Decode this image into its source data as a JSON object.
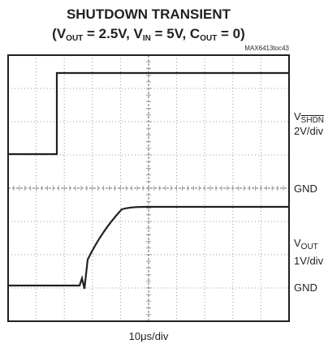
{
  "title": {
    "line1": "SHUTDOWN TRANSIENT",
    "line2": [
      "(V",
      "OUT",
      " = 2.5V, V",
      "IN",
      " = 5V, C",
      "OUT",
      " = 0)"
    ]
  },
  "figure_id": "MAX6413toc43",
  "labels": {
    "ch1_name": [
      "V",
      "SHDN"
    ],
    "ch1_scale": "2V/div",
    "ch1_ground": "GND",
    "ch2_name": [
      "V",
      "OUT"
    ],
    "ch2_scale": "1V/div",
    "ch2_ground": "GND"
  },
  "time_scale": "10μs/div"
}
